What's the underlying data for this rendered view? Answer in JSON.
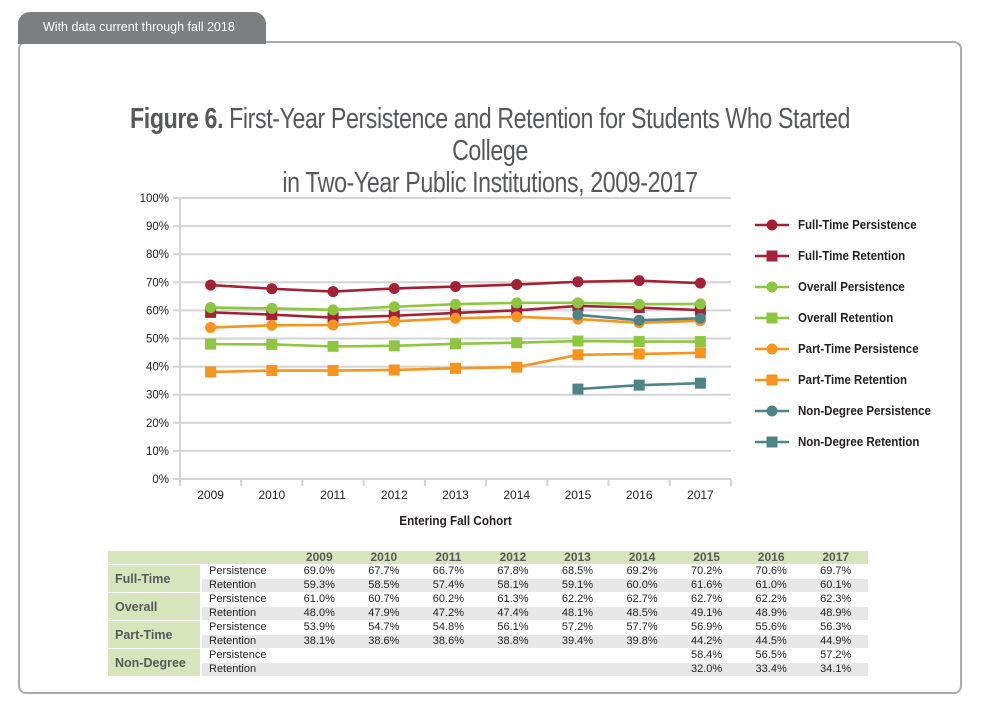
{
  "tab": {
    "label": "With data current through fall 2018"
  },
  "title": {
    "bold": "Figure 6.",
    "rest": " First-Year Persistence and Retention for Students Who Started College",
    "line2": "in Two-Year Public Institutions, 2009-2017"
  },
  "colors": {
    "dark_red": "#a32035",
    "green": "#8dc63f",
    "orange": "#f7941e",
    "teal": "#4e8487",
    "grid": "#d2d4d5",
    "table_green": "#d7e4bc",
    "table_gray": "#e7e7e8",
    "tab_gray": "#7c7e80",
    "title_gray": "#57585a"
  },
  "chart_data": {
    "type": "line",
    "title": "Figure 6. First-Year Persistence and Retention for Students Who Started College in Two-Year Public Institutions, 2009-2017",
    "xlabel": "Entering Fall Cohort",
    "ylabel": "",
    "x": [
      2009,
      2010,
      2011,
      2012,
      2013,
      2014,
      2015,
      2016,
      2017
    ],
    "xticks": [
      "2009",
      "2010",
      "2011",
      "2012",
      "2013",
      "2014",
      "2015",
      "2016",
      "2017"
    ],
    "yticks": [
      "0%",
      "10%",
      "20%",
      "30%",
      "40%",
      "50%",
      "60%",
      "70%",
      "80%",
      "90%",
      "100%"
    ],
    "ylim": [
      0,
      100
    ],
    "ytick_step": 10,
    "grid": true,
    "legend_position": "right",
    "series": [
      {
        "name": "Full-Time Persistence",
        "color": "#a32035",
        "marker": "circle",
        "values": [
          69.0,
          67.7,
          66.7,
          67.8,
          68.5,
          69.2,
          70.2,
          70.6,
          69.7
        ]
      },
      {
        "name": "Full-Time Retention",
        "color": "#a32035",
        "marker": "square",
        "values": [
          59.3,
          58.5,
          57.4,
          58.1,
          59.1,
          60.0,
          61.6,
          61.0,
          60.1
        ]
      },
      {
        "name": "Overall Persistence",
        "color": "#8dc63f",
        "marker": "circle",
        "values": [
          61.0,
          60.7,
          60.2,
          61.3,
          62.2,
          62.7,
          62.7,
          62.2,
          62.3
        ]
      },
      {
        "name": "Overall Retention",
        "color": "#8dc63f",
        "marker": "square",
        "values": [
          48.0,
          47.9,
          47.2,
          47.4,
          48.1,
          48.5,
          49.1,
          48.9,
          48.9
        ]
      },
      {
        "name": "Part-Time Persistence",
        "color": "#f7941e",
        "marker": "circle",
        "values": [
          53.9,
          54.7,
          54.8,
          56.1,
          57.2,
          57.7,
          56.9,
          55.6,
          56.3
        ]
      },
      {
        "name": "Part-Time Retention",
        "color": "#f7941e",
        "marker": "square",
        "values": [
          38.1,
          38.6,
          38.6,
          38.8,
          39.4,
          39.8,
          44.2,
          44.5,
          44.9
        ]
      },
      {
        "name": "Non-Degree Persistence",
        "color": "#4e8487",
        "marker": "circle",
        "values": [
          null,
          null,
          null,
          null,
          null,
          null,
          58.4,
          56.5,
          57.2
        ]
      },
      {
        "name": "Non-Degree Retention",
        "color": "#4e8487",
        "marker": "square",
        "values": [
          null,
          null,
          null,
          null,
          null,
          null,
          32.0,
          33.4,
          34.1
        ]
      }
    ]
  },
  "table": {
    "year_headers": [
      "2009",
      "2010",
      "2011",
      "2012",
      "2013",
      "2014",
      "2015",
      "2016",
      "2017"
    ],
    "groups": [
      {
        "label": "Full-Time",
        "rows": [
          {
            "label": "Persistence",
            "values": [
              "69.0%",
              "67.7%",
              "66.7%",
              "67.8%",
              "68.5%",
              "69.2%",
              "70.2%",
              "70.6%",
              "69.7%"
            ]
          },
          {
            "label": "Retention",
            "values": [
              "59.3%",
              "58.5%",
              "57.4%",
              "58.1%",
              "59.1%",
              "60.0%",
              "61.6%",
              "61.0%",
              "60.1%"
            ]
          }
        ]
      },
      {
        "label": "Overall",
        "rows": [
          {
            "label": "Persistence",
            "values": [
              "61.0%",
              "60.7%",
              "60.2%",
              "61.3%",
              "62.2%",
              "62.7%",
              "62.7%",
              "62.2%",
              "62.3%"
            ]
          },
          {
            "label": "Retention",
            "values": [
              "48.0%",
              "47.9%",
              "47.2%",
              "47.4%",
              "48.1%",
              "48.5%",
              "49.1%",
              "48.9%",
              "48.9%"
            ]
          }
        ]
      },
      {
        "label": "Part-Time",
        "rows": [
          {
            "label": "Persistence",
            "values": [
              "53.9%",
              "54.7%",
              "54.8%",
              "56.1%",
              "57.2%",
              "57.7%",
              "56.9%",
              "55.6%",
              "56.3%"
            ]
          },
          {
            "label": "Retention",
            "values": [
              "38.1%",
              "38.6%",
              "38.6%",
              "38.8%",
              "39.4%",
              "39.8%",
              "44.2%",
              "44.5%",
              "44.9%"
            ]
          }
        ]
      },
      {
        "label": "Non-Degree",
        "rows": [
          {
            "label": "Persistence",
            "values": [
              "",
              "",
              "",
              "",
              "",
              "",
              "58.4%",
              "56.5%",
              "57.2%"
            ]
          },
          {
            "label": "Retention",
            "values": [
              "",
              "",
              "",
              "",
              "",
              "",
              "32.0%",
              "33.4%",
              "34.1%"
            ]
          }
        ]
      }
    ]
  }
}
